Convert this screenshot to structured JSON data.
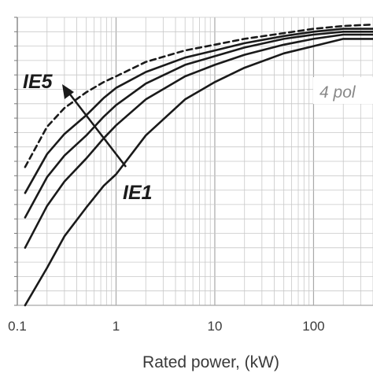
{
  "chart_data": {
    "type": "line",
    "title": "",
    "xlabel": "Rated power, (kW)",
    "ylabel": "",
    "x_scale": "log",
    "xlim": [
      0.1,
      400
    ],
    "ylim": [
      0,
      1
    ],
    "grid": true,
    "x_ticks": [
      "0.1",
      "1",
      "10",
      "100"
    ],
    "annotations": {
      "top_class": "IE5",
      "bottom_class": "IE1",
      "pole_text": "4 pol"
    },
    "series": [
      {
        "style": "dashed",
        "x": [
          0.12,
          0.2,
          0.3,
          0.5,
          0.75,
          1,
          2,
          5,
          10,
          20,
          50,
          100,
          200,
          400
        ],
        "y": [
          0.48,
          0.62,
          0.685,
          0.74,
          0.775,
          0.795,
          0.845,
          0.885,
          0.905,
          0.925,
          0.945,
          0.96,
          0.97,
          0.975
        ]
      },
      {
        "style": "solid",
        "x": [
          0.12,
          0.2,
          0.3,
          0.5,
          0.75,
          1,
          2,
          5,
          10,
          20,
          50,
          100,
          200,
          400
        ],
        "y": [
          0.39,
          0.525,
          0.595,
          0.66,
          0.72,
          0.755,
          0.81,
          0.86,
          0.885,
          0.91,
          0.935,
          0.95,
          0.96,
          0.96
        ]
      },
      {
        "style": "solid",
        "x": [
          0.12,
          0.2,
          0.3,
          0.5,
          0.75,
          1,
          2,
          5,
          10,
          20,
          50,
          100,
          200,
          400
        ],
        "y": [
          0.305,
          0.445,
          0.52,
          0.59,
          0.655,
          0.695,
          0.77,
          0.835,
          0.865,
          0.895,
          0.925,
          0.94,
          0.95,
          0.95
        ]
      },
      {
        "style": "solid",
        "x": [
          0.12,
          0.2,
          0.3,
          0.5,
          0.75,
          1,
          2,
          5,
          10,
          20,
          50,
          100,
          200,
          400
        ],
        "y": [
          0.2,
          0.345,
          0.43,
          0.51,
          0.58,
          0.625,
          0.715,
          0.795,
          0.835,
          0.87,
          0.905,
          0.925,
          0.94,
          0.94
        ]
      },
      {
        "style": "solid",
        "x": [
          0.12,
          0.2,
          0.3,
          0.5,
          0.75,
          1,
          2,
          5,
          10,
          20,
          50,
          100,
          200,
          400
        ],
        "y": [
          0.0,
          0.13,
          0.24,
          0.34,
          0.415,
          0.455,
          0.59,
          0.715,
          0.775,
          0.825,
          0.875,
          0.9,
          0.925,
          0.925
        ]
      }
    ]
  }
}
